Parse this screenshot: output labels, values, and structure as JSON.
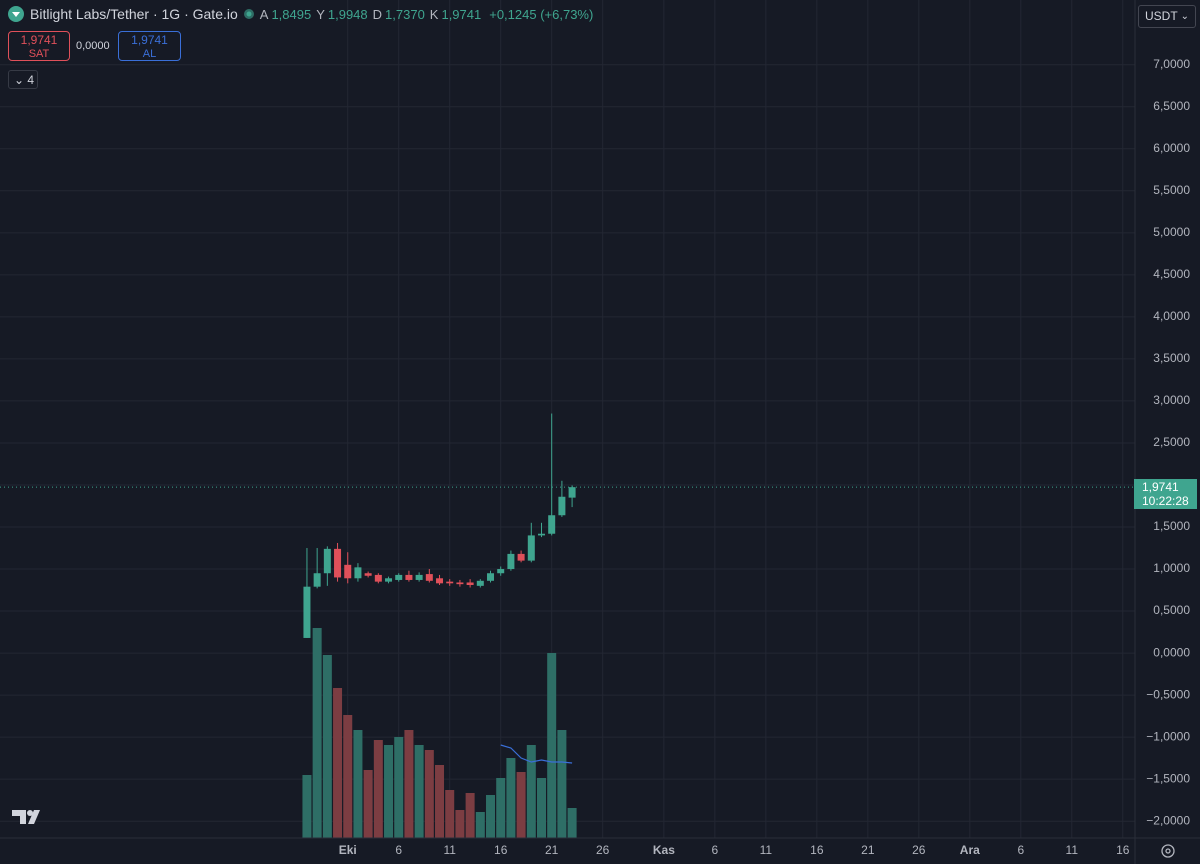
{
  "header": {
    "symbol": "Bitlight Labs/Tether · 1G · Gate.io",
    "ohlc": [
      {
        "key": "A",
        "value": "1,8495"
      },
      {
        "key": "Y",
        "value": "1,9948"
      },
      {
        "key": "D",
        "value": "1,7370"
      },
      {
        "key": "K",
        "value": "1,9741"
      }
    ],
    "change": "+0,1245 (+6,73%)"
  },
  "trade": {
    "sell_price": "1,9741",
    "sell_label": "SAT",
    "spread": "0,0000",
    "buy_price": "1,9741",
    "buy_label": "AL"
  },
  "indicators_count": "4",
  "currency": "USDT",
  "price_tag": {
    "price": "1,9741",
    "countdown": "10:22:28"
  },
  "chart_data": {
    "type": "candlestick",
    "open": [
      0.18,
      0.79,
      0.95,
      1.24,
      1.05,
      0.89,
      0.95,
      0.93,
      0.85,
      0.87,
      0.93,
      0.87,
      0.94,
      0.89,
      0.85,
      0.84,
      0.84,
      0.8,
      0.86,
      0.95,
      1.0,
      1.18,
      1.1,
      1.4,
      1.42,
      1.64,
      1.8495
    ],
    "high": [
      1.25,
      1.25,
      1.27,
      1.31,
      1.2,
      1.07,
      0.97,
      0.95,
      0.91,
      0.95,
      0.98,
      0.96,
      1.0,
      0.93,
      0.88,
      0.87,
      0.88,
      0.88,
      0.98,
      1.03,
      1.22,
      1.22,
      1.55,
      1.55,
      2.85,
      2.05,
      1.9948
    ],
    "low": [
      0.18,
      0.77,
      0.8,
      0.85,
      0.83,
      0.85,
      0.9,
      0.83,
      0.83,
      0.85,
      0.85,
      0.85,
      0.84,
      0.81,
      0.8,
      0.79,
      0.78,
      0.78,
      0.84,
      0.92,
      0.98,
      1.08,
      1.08,
      1.38,
      1.4,
      1.62,
      1.737
    ],
    "close": [
      0.79,
      0.95,
      1.24,
      0.9,
      0.89,
      1.02,
      0.92,
      0.85,
      0.89,
      0.93,
      0.87,
      0.93,
      0.86,
      0.83,
      0.83,
      0.82,
      0.81,
      0.86,
      0.95,
      1.0,
      1.18,
      1.1,
      1.4,
      1.42,
      1.64,
      1.86,
      1.9741
    ],
    "volume": [
      63,
      210,
      183,
      150,
      123,
      108,
      68,
      98,
      93,
      101,
      108,
      93,
      88,
      73,
      48,
      28,
      45,
      26,
      43,
      60,
      80,
      66,
      93,
      60,
      185,
      108,
      30
    ],
    "volume_ma": [
      null,
      null,
      null,
      null,
      null,
      null,
      null,
      null,
      null,
      null,
      null,
      null,
      null,
      null,
      null,
      null,
      null,
      null,
      null,
      93,
      90,
      80,
      76,
      78,
      76,
      76,
      75
    ],
    "volume_lim": [
      0,
      400
    ],
    "up_color": "#3fa58f",
    "down_color": "#e0505a",
    "up_volume_color": "#2e6e66",
    "down_volume_color": "#7c3d42",
    "ma_color": "#3a6fd8",
    "xlim": [
      -30.1,
      81.2
    ],
    "xticks": [
      {
        "value": 4,
        "label": "Eki"
      },
      {
        "value": 9,
        "label": "6"
      },
      {
        "value": 14,
        "label": "11"
      },
      {
        "value": 19,
        "label": "16"
      },
      {
        "value": 24,
        "label": "21"
      },
      {
        "value": 29,
        "label": "26"
      },
      {
        "value": 35,
        "label": "Kas"
      },
      {
        "value": 40,
        "label": "6"
      },
      {
        "value": 45,
        "label": "11"
      },
      {
        "value": 50,
        "label": "16"
      },
      {
        "value": 55,
        "label": "21"
      },
      {
        "value": 60,
        "label": "26"
      },
      {
        "value": 65,
        "label": "Ara"
      },
      {
        "value": 70,
        "label": "6"
      },
      {
        "value": 75,
        "label": "11"
      },
      {
        "value": 80,
        "label": "16"
      }
    ],
    "ylim": [
      -2.2,
      7.77
    ],
    "yticks": [
      {
        "value": -2,
        "label": "−2,0000"
      },
      {
        "value": -1.5,
        "label": "−1,5000"
      },
      {
        "value": -1,
        "label": "−1,0000"
      },
      {
        "value": -0.5,
        "label": "−0,5000"
      },
      {
        "value": 0,
        "label": "0,0000"
      },
      {
        "value": 0.5,
        "label": "0,5000"
      },
      {
        "value": 1,
        "label": "1,0000"
      },
      {
        "value": 1.5,
        "label": "1,5000"
      },
      {
        "value": 2,
        "label": "2,0000"
      },
      {
        "value": 2.5,
        "label": "2,5000"
      },
      {
        "value": 3,
        "label": "3,0000"
      },
      {
        "value": 3.5,
        "label": "3,5000"
      },
      {
        "value": 4,
        "label": "4,0000"
      },
      {
        "value": 4.5,
        "label": "4,5000"
      },
      {
        "value": 5,
        "label": "5,0000"
      },
      {
        "value": 5.5,
        "label": "5,5000"
      },
      {
        "value": 6,
        "label": "6,0000"
      },
      {
        "value": 6.5,
        "label": "6,5000"
      },
      {
        "value": 7,
        "label": "7,0000"
      }
    ],
    "grid": true
  }
}
